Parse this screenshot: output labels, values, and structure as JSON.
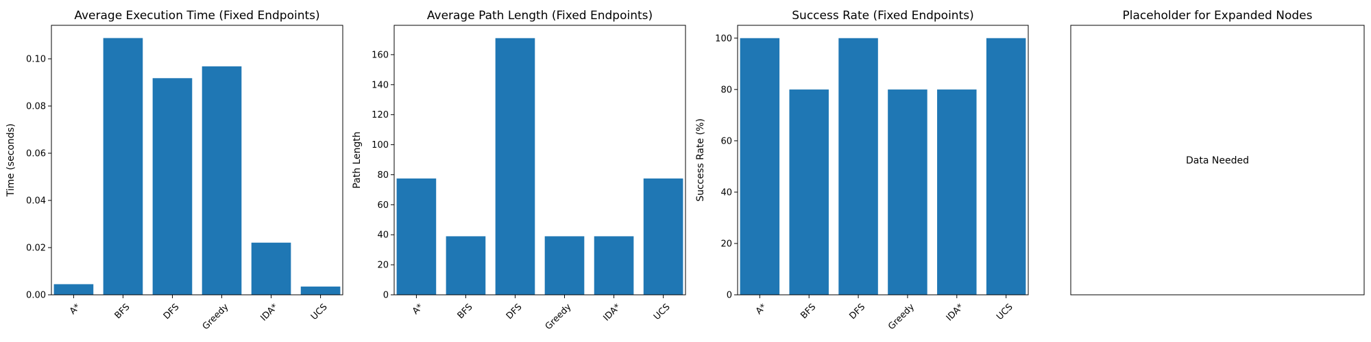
{
  "chart_data": [
    {
      "type": "bar",
      "title": "Average Execution Time (Fixed Endpoints)",
      "xlabel": "",
      "ylabel": "Time (seconds)",
      "categories": [
        "A*",
        "BFS",
        "DFS",
        "Greedy",
        "IDA*",
        "UCS"
      ],
      "values": [
        0.0045,
        0.1088,
        0.0918,
        0.0968,
        0.0221,
        0.0035
      ],
      "ylim": [
        0,
        0.1142
      ],
      "yticks": [
        0.0,
        0.02,
        0.04,
        0.06,
        0.08,
        0.1
      ],
      "ytick_labels": [
        "0.00",
        "0.02",
        "0.04",
        "0.06",
        "0.08",
        "0.10"
      ],
      "color": "#1f77b4",
      "grid": false
    },
    {
      "type": "bar",
      "title": "Average Path Length (Fixed Endpoints)",
      "xlabel": "",
      "ylabel": "Path Length",
      "categories": [
        "A*",
        "BFS",
        "DFS",
        "Greedy",
        "IDA*",
        "UCS"
      ],
      "values": [
        77.5,
        39.0,
        171.0,
        39.0,
        39.0,
        77.5
      ],
      "ylim": [
        0,
        179.55
      ],
      "yticks": [
        0,
        20,
        40,
        60,
        80,
        100,
        120,
        140,
        160
      ],
      "ytick_labels": [
        "0",
        "20",
        "40",
        "60",
        "80",
        "100",
        "120",
        "140",
        "160"
      ],
      "color": "#1f77b4",
      "grid": false
    },
    {
      "type": "bar",
      "title": "Success Rate (Fixed Endpoints)",
      "xlabel": "",
      "ylabel": "Success Rate (%)",
      "categories": [
        "A*",
        "BFS",
        "DFS",
        "Greedy",
        "IDA*",
        "UCS"
      ],
      "values": [
        100,
        80,
        100,
        80,
        80,
        100
      ],
      "ylim": [
        0,
        105
      ],
      "yticks": [
        0,
        20,
        40,
        60,
        80,
        100
      ],
      "ytick_labels": [
        "0",
        "20",
        "40",
        "60",
        "80",
        "100"
      ],
      "color": "#1f77b4",
      "grid": false
    },
    {
      "type": "placeholder",
      "title": "Placeholder for Expanded Nodes",
      "xlabel": "",
      "ylabel": "",
      "message": "Data Needed"
    }
  ]
}
